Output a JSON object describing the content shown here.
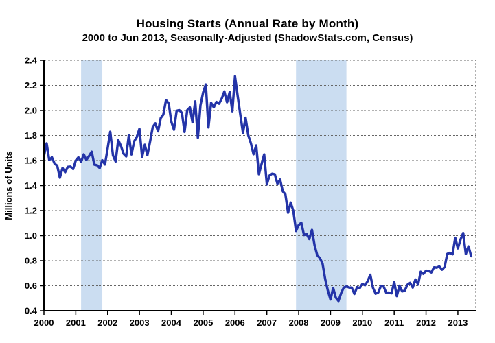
{
  "chart_data": {
    "type": "line",
    "title": "Housing Starts (Annual Rate by Month)",
    "subtitle": "2000 to Jun 2013, Seasonally-Adjusted (ShadowStats.com, Census)",
    "ylabel": "Millions of Units",
    "ylim": [
      0.4,
      2.4
    ],
    "ytick_step": 0.2,
    "ytick_labels_top_to_bottom": [
      "2.4",
      "2.2",
      "2.0",
      "1.8",
      "1.6",
      "1.4",
      "1.2",
      "1.0",
      "0.8",
      "0.6",
      "0.4"
    ],
    "xtick_labels": [
      "2000",
      "2001",
      "2002",
      "2003",
      "2004",
      "2005",
      "2006",
      "2007",
      "2008",
      "2009",
      "2010",
      "2011",
      "2012",
      "2013"
    ],
    "x_start": "2000-01",
    "x_end": "2013-06",
    "grid": "horizontal-dotted",
    "legend": "none",
    "line_color": "#2434A8",
    "band_color": "#CBDDF1",
    "grid_color": "#666666",
    "axis_color": "#000000",
    "recession_bands": [
      {
        "from": "2001-03",
        "to": "2001-11"
      },
      {
        "from": "2007-12",
        "to": "2009-07"
      }
    ],
    "series": [
      {
        "name": "Housing Starts",
        "monthly_values": {
          "2000": [
            1.636,
            1.737,
            1.604,
            1.626,
            1.575,
            1.559,
            1.463,
            1.541,
            1.507,
            1.549,
            1.551,
            1.532
          ],
          "2001": [
            1.6,
            1.625,
            1.59,
            1.649,
            1.605,
            1.636,
            1.67,
            1.567,
            1.562,
            1.54,
            1.602,
            1.568
          ],
          "2002": [
            1.698,
            1.829,
            1.642,
            1.592,
            1.764,
            1.717,
            1.655,
            1.633,
            1.804,
            1.648,
            1.753,
            1.788
          ],
          "2003": [
            1.853,
            1.629,
            1.726,
            1.643,
            1.751,
            1.867,
            1.897,
            1.833,
            1.939,
            1.967,
            2.083,
            2.057
          ],
          "2004": [
            1.911,
            1.846,
            1.998,
            2.003,
            1.981,
            1.828,
            2.002,
            2.024,
            1.905,
            2.072,
            1.782,
            2.042
          ],
          "2005": [
            2.144,
            2.207,
            1.864,
            2.061,
            2.025,
            2.068,
            2.054,
            2.095,
            2.151,
            2.065,
            2.147,
            1.994
          ],
          "2006": [
            2.273,
            2.119,
            1.969,
            1.821,
            1.942,
            1.802,
            1.737,
            1.65,
            1.72,
            1.491,
            1.57,
            1.649
          ],
          "2007": [
            1.409,
            1.48,
            1.495,
            1.49,
            1.415,
            1.448,
            1.354,
            1.33,
            1.183,
            1.264,
            1.197,
            1.037
          ],
          "2008": [
            1.084,
            1.103,
            1.005,
            1.013,
            0.973,
            1.046,
            0.923,
            0.844,
            0.82,
            0.777,
            0.652,
            0.56
          ],
          "2009": [
            0.49,
            0.582,
            0.505,
            0.478,
            0.54,
            0.585,
            0.594,
            0.586,
            0.585,
            0.534,
            0.588,
            0.581
          ],
          "2010": [
            0.614,
            0.604,
            0.636,
            0.687,
            0.583,
            0.536,
            0.546,
            0.599,
            0.594,
            0.543,
            0.545,
            0.539
          ],
          "2011": [
            0.63,
            0.517,
            0.6,
            0.554,
            0.561,
            0.608,
            0.623,
            0.585,
            0.65,
            0.61,
            0.711,
            0.694
          ],
          "2012": [
            0.72,
            0.718,
            0.706,
            0.747,
            0.744,
            0.754,
            0.728,
            0.749,
            0.854,
            0.863,
            0.851,
            0.983
          ],
          "2013": [
            0.898,
            0.969,
            1.021,
            0.853,
            0.914,
            0.836
          ]
        }
      }
    ]
  }
}
